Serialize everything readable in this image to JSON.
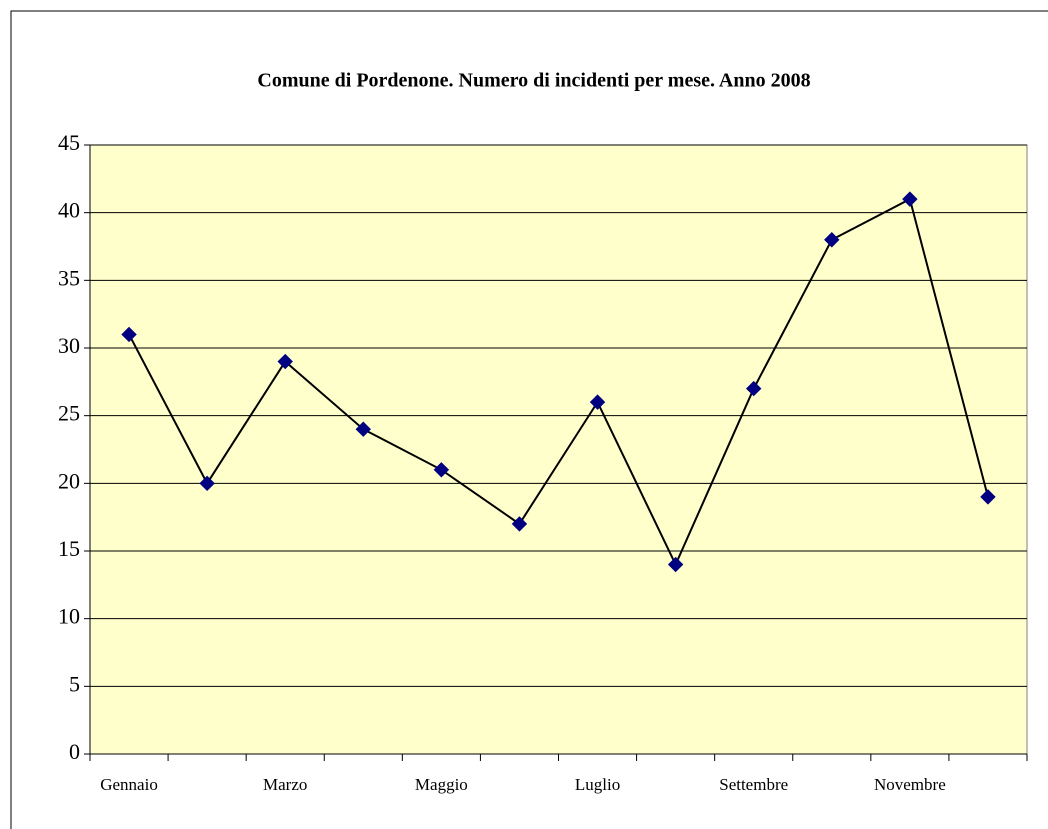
{
  "chart_data": {
    "type": "line",
    "title": "Comune di Pordenone. Numero di incidenti per mese. Anno 2008",
    "categories": [
      "Gennaio",
      null,
      "Marzo",
      null,
      "Maggio",
      null,
      "Luglio",
      null,
      "Settembre",
      null,
      "Novembre",
      null
    ],
    "series": [
      {
        "name": "Incidenti",
        "color": "#000080",
        "values": [
          31,
          20,
          29,
          24,
          21,
          17,
          26,
          14,
          27,
          38,
          41,
          19
        ]
      }
    ],
    "ylim": [
      0,
      45
    ],
    "yticks": [
      0,
      5,
      10,
      15,
      20,
      25,
      30,
      35,
      40,
      45
    ],
    "grid": true
  }
}
